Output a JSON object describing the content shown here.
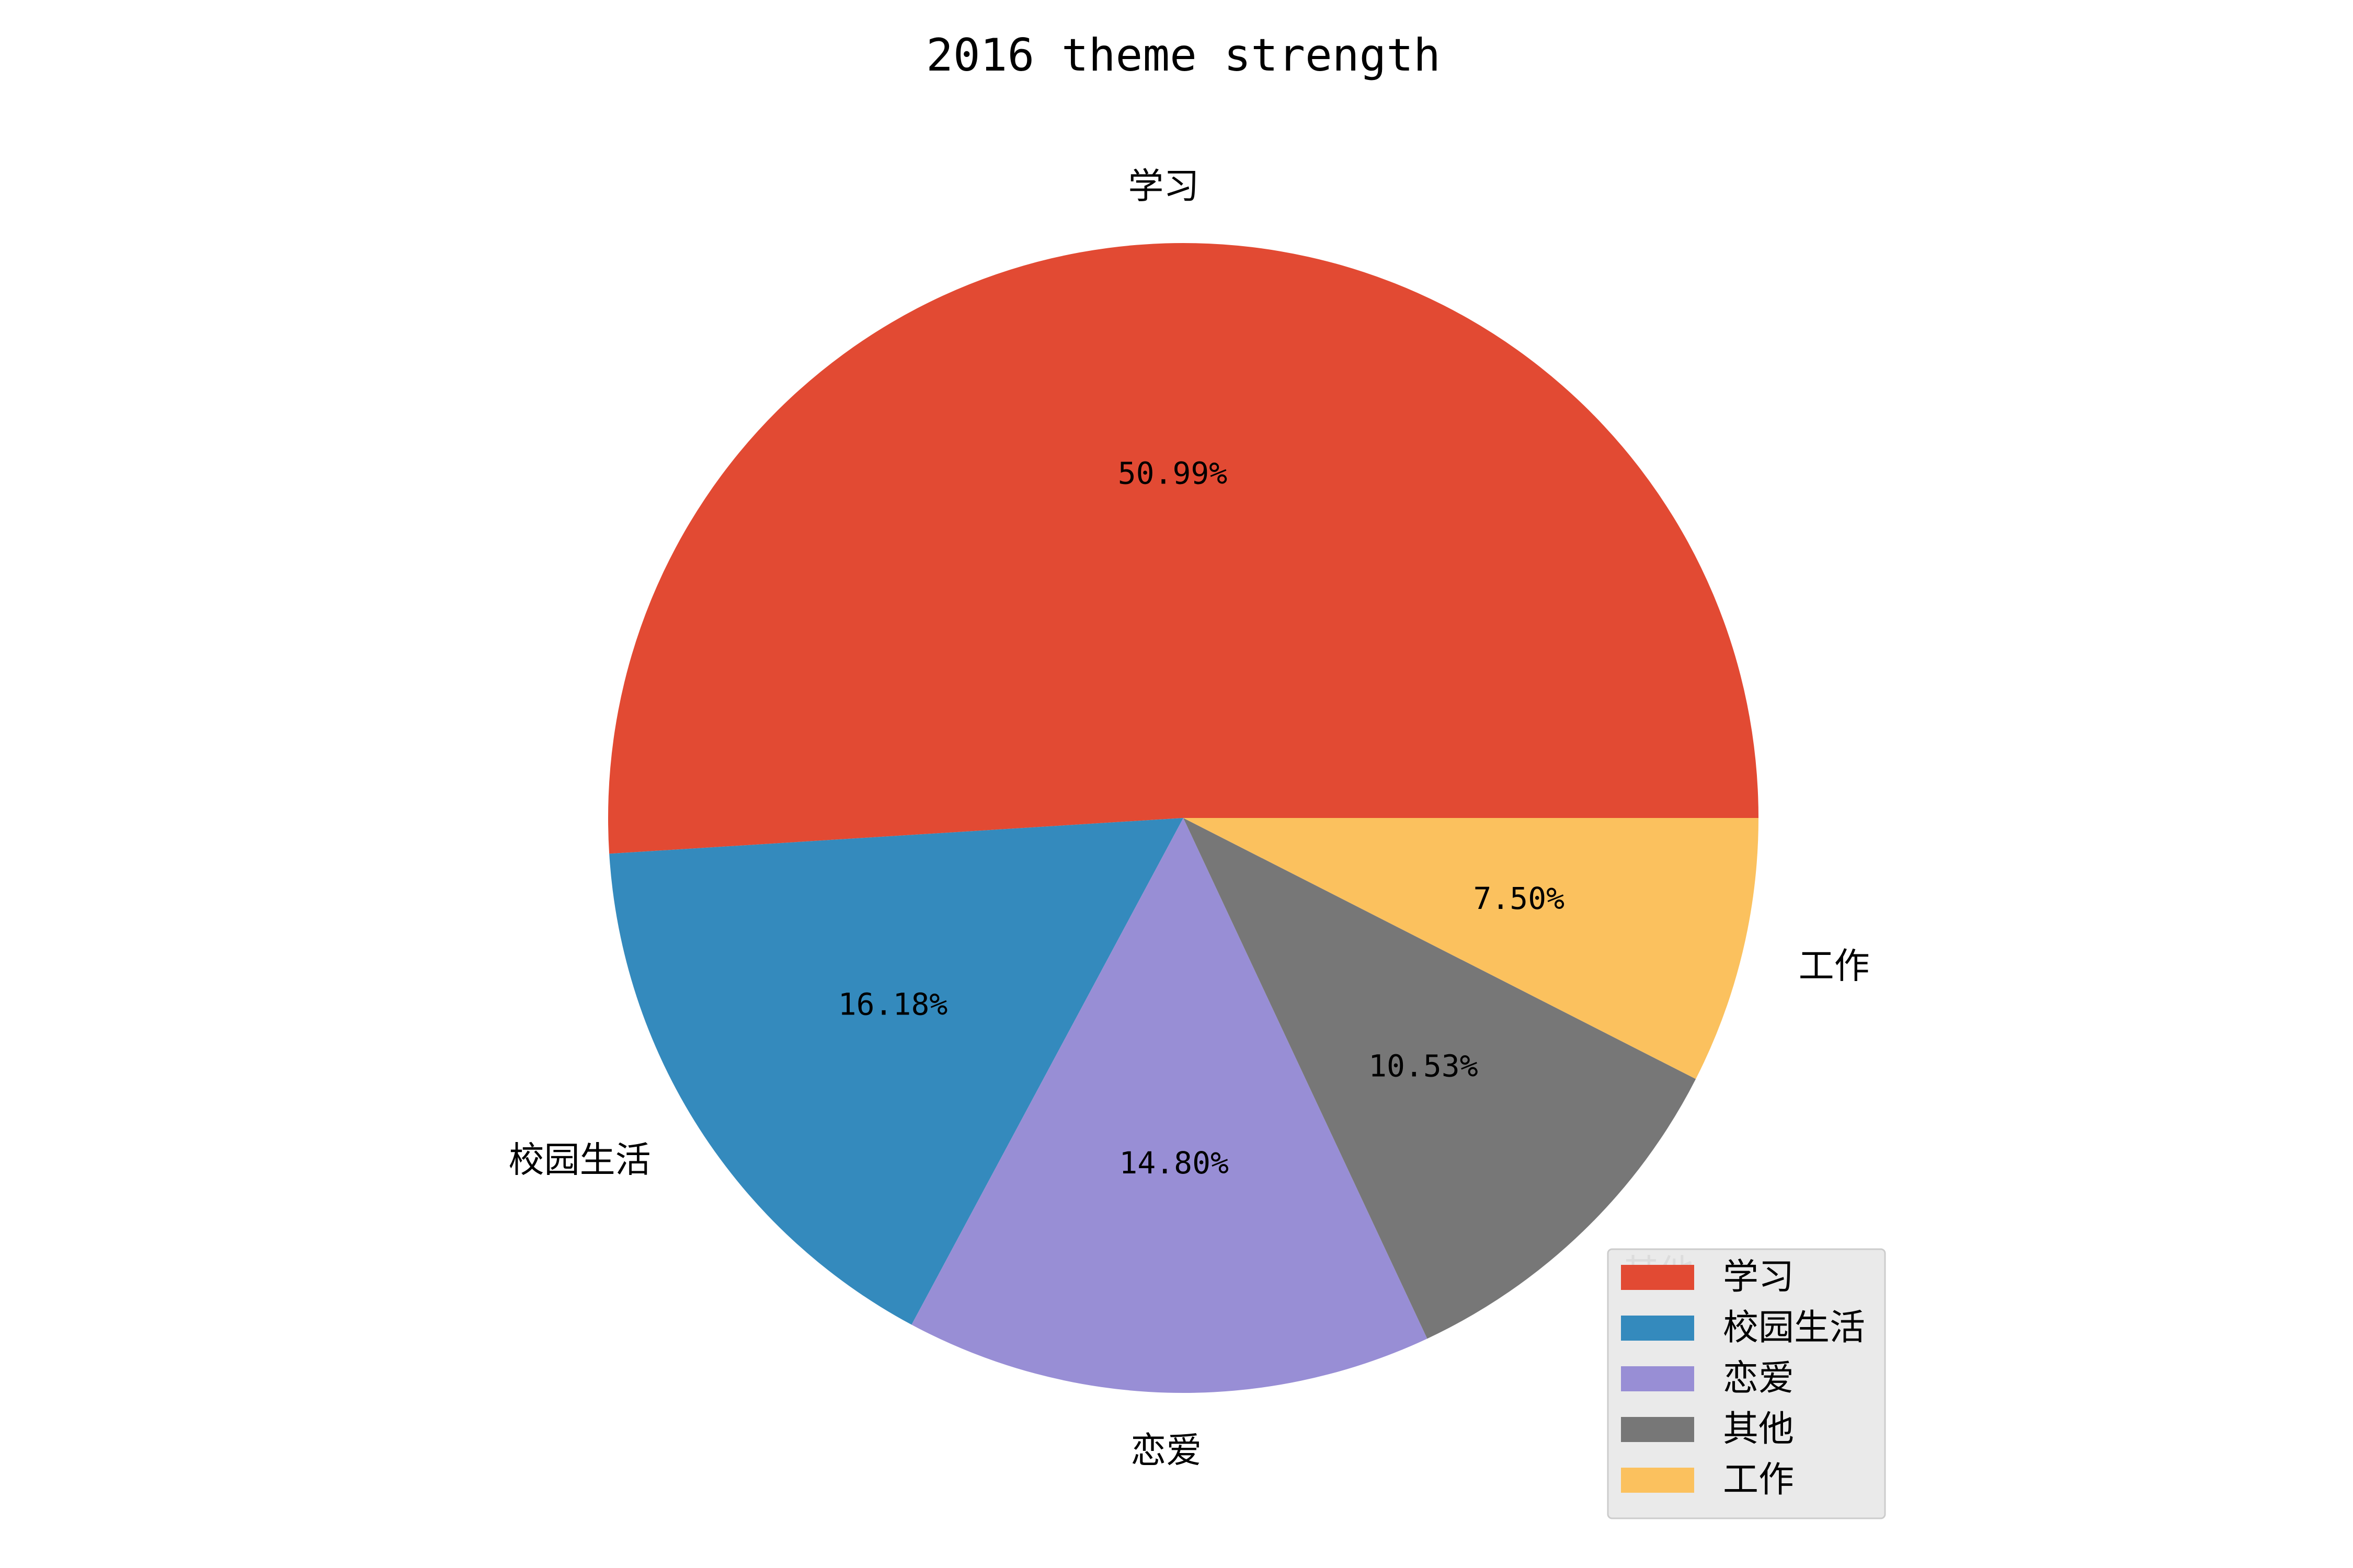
{
  "chart_data": {
    "type": "pie",
    "title": "2016 theme strength",
    "categories": [
      "学习",
      "校园生活",
      "恋爱",
      "其他",
      "工作"
    ],
    "values": [
      50.99,
      16.18,
      14.8,
      10.53,
      7.5
    ],
    "pct_labels": [
      "50.99%",
      "16.18%",
      "14.80%",
      "10.53%",
      "7.50%"
    ],
    "colors": [
      "#E24A33",
      "#348ABD",
      "#988ED5",
      "#777777",
      "#FBC15E"
    ],
    "start_angle_deg": 0,
    "direction": "counterclockwise",
    "legend": {
      "placement": "lower-right",
      "entries": [
        "学习",
        "校园生活",
        "恋爱",
        "其他",
        "工作"
      ]
    }
  }
}
